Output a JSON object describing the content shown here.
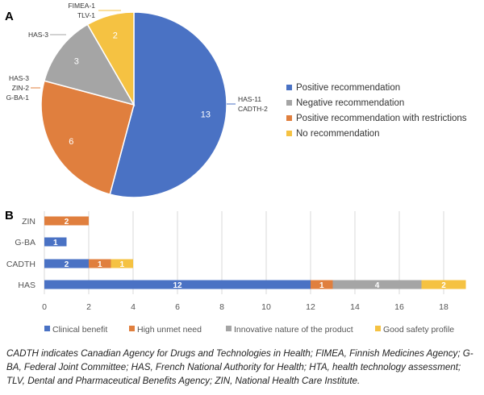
{
  "chart_data": [
    {
      "panel_label": "A",
      "type": "pie",
      "slices": [
        {
          "name": "Positive recommendation",
          "value": 13,
          "color": "#4a72c4",
          "callout": [
            "HAS-11",
            "CADTH-2"
          ]
        },
        {
          "name": "Positive recommendation with restrictions",
          "value": 6,
          "color": "#e07f3e",
          "callout": [
            "HAS-3",
            "ZIN-2",
            "G-BA-1"
          ]
        },
        {
          "name": "Negative recommendation",
          "value": 3,
          "color": "#a5a5a5",
          "callout": [
            "HAS-3"
          ]
        },
        {
          "name": "No recommendation",
          "value": 2,
          "color": "#f5c242",
          "callout": [
            "FIMEA-1",
            "TLV-1"
          ]
        }
      ],
      "legend": [
        "Positive recommendation",
        "Negative recommendation",
        "Positive recommendation with restrictions",
        "No recommendation"
      ],
      "legend_colors": [
        "#4a72c4",
        "#a5a5a5",
        "#e07f3e",
        "#f5c242"
      ],
      "legend_position": "right"
    },
    {
      "panel_label": "B",
      "type": "bar",
      "orientation": "horizontal",
      "stacked": true,
      "categories": [
        "ZIN",
        "G-BA",
        "CADTH",
        "HAS"
      ],
      "series": [
        {
          "name": "Clinical benefit",
          "color": "#4a72c4",
          "values": [
            0,
            1,
            2,
            12
          ]
        },
        {
          "name": "High unmet need",
          "color": "#e07f3e",
          "values": [
            2,
            0,
            1,
            1
          ]
        },
        {
          "name": "Innovative nature of the product",
          "color": "#a5a5a5",
          "values": [
            0,
            0,
            0,
            4
          ]
        },
        {
          "name": "Good safety profile",
          "color": "#f5c242",
          "values": [
            0,
            0,
            1,
            2
          ]
        }
      ],
      "xticks": [
        "0",
        "2",
        "4",
        "6",
        "8",
        "10",
        "12",
        "14",
        "16",
        "18"
      ],
      "xlim": [
        0,
        19
      ],
      "grid": true,
      "legend_position": "bottom"
    }
  ],
  "caption": "CADTH indicates Canadian Agency for Drugs and Technologies in Health; FIMEA, Finnish Medicines Agency; G-BA, Federal Joint Committee; HAS, French National Authority for Health; HTA, health technology assessment; TLV, Dental and Pharmaceutical Benefits Agency; ZIN, National Health Care Institute."
}
